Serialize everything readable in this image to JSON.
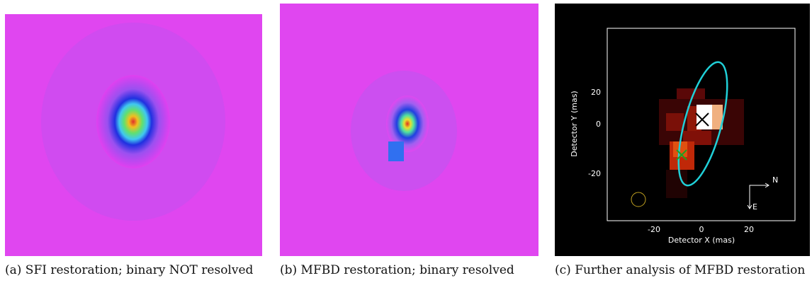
{
  "panels": [
    {
      "caption": "(a) SFI restoration; binary NOT resolved"
    },
    {
      "caption": "(b) MFBD restoration; binary resolved"
    },
    {
      "caption": "(c) Further analysis of MFBD restoration"
    }
  ],
  "analysis": {
    "x_label": "Detector X (mas)",
    "y_label": "Detector Y (mas)",
    "xticks": [
      -20,
      0,
      20
    ],
    "yticks": [
      20,
      0,
      -20
    ],
    "north": "N",
    "east": "E"
  }
}
